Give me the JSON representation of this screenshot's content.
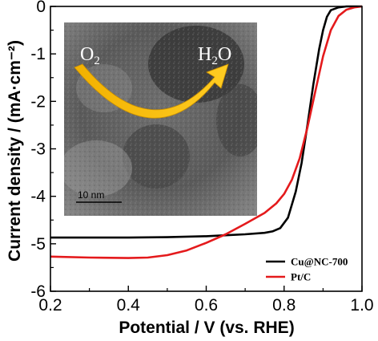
{
  "chart_data": {
    "type": "line",
    "xlabel": "Potential / V (vs. RHE)",
    "ylabel": "Current density / (mA·cm⁻²)",
    "xlim": [
      0.2,
      1.0
    ],
    "ylim": [
      -6,
      0
    ],
    "xticks": [
      "0.2",
      "0.4",
      "0.6",
      "0.8",
      "1.0"
    ],
    "yticks": [
      "0",
      "-1",
      "-2",
      "-3",
      "-4",
      "-5",
      "-6"
    ],
    "grid": false,
    "legend_position": "bottom-right",
    "series": [
      {
        "name": "Cu@NC-700",
        "color": "#000000",
        "points": [
          [
            0.2,
            -4.87
          ],
          [
            0.3,
            -4.87
          ],
          [
            0.4,
            -4.87
          ],
          [
            0.5,
            -4.86
          ],
          [
            0.6,
            -4.84
          ],
          [
            0.65,
            -4.82
          ],
          [
            0.7,
            -4.8
          ],
          [
            0.75,
            -4.77
          ],
          [
            0.77,
            -4.74
          ],
          [
            0.79,
            -4.67
          ],
          [
            0.81,
            -4.45
          ],
          [
            0.83,
            -3.9
          ],
          [
            0.845,
            -3.3
          ],
          [
            0.86,
            -2.5
          ],
          [
            0.875,
            -1.65
          ],
          [
            0.89,
            -0.9
          ],
          [
            0.9,
            -0.5
          ],
          [
            0.91,
            -0.22
          ],
          [
            0.92,
            -0.08
          ],
          [
            0.94,
            -0.02
          ],
          [
            0.96,
            0.0
          ],
          [
            1.0,
            0.0
          ]
        ]
      },
      {
        "name": "Pt/C",
        "color": "#e41a1c",
        "points": [
          [
            0.2,
            -5.27
          ],
          [
            0.3,
            -5.29
          ],
          [
            0.4,
            -5.3
          ],
          [
            0.45,
            -5.29
          ],
          [
            0.5,
            -5.24
          ],
          [
            0.55,
            -5.14
          ],
          [
            0.6,
            -4.98
          ],
          [
            0.65,
            -4.8
          ],
          [
            0.7,
            -4.58
          ],
          [
            0.75,
            -4.35
          ],
          [
            0.78,
            -4.15
          ],
          [
            0.8,
            -3.95
          ],
          [
            0.82,
            -3.65
          ],
          [
            0.84,
            -3.2
          ],
          [
            0.86,
            -2.55
          ],
          [
            0.88,
            -1.8
          ],
          [
            0.9,
            -1.05
          ],
          [
            0.92,
            -0.5
          ],
          [
            0.94,
            -0.2
          ],
          [
            0.96,
            -0.07
          ],
          [
            0.98,
            -0.02
          ],
          [
            1.0,
            0.0
          ]
        ]
      }
    ],
    "inset": {
      "label_left": "O2",
      "label_right": "H2O",
      "scale_bar": "10 nm"
    }
  }
}
